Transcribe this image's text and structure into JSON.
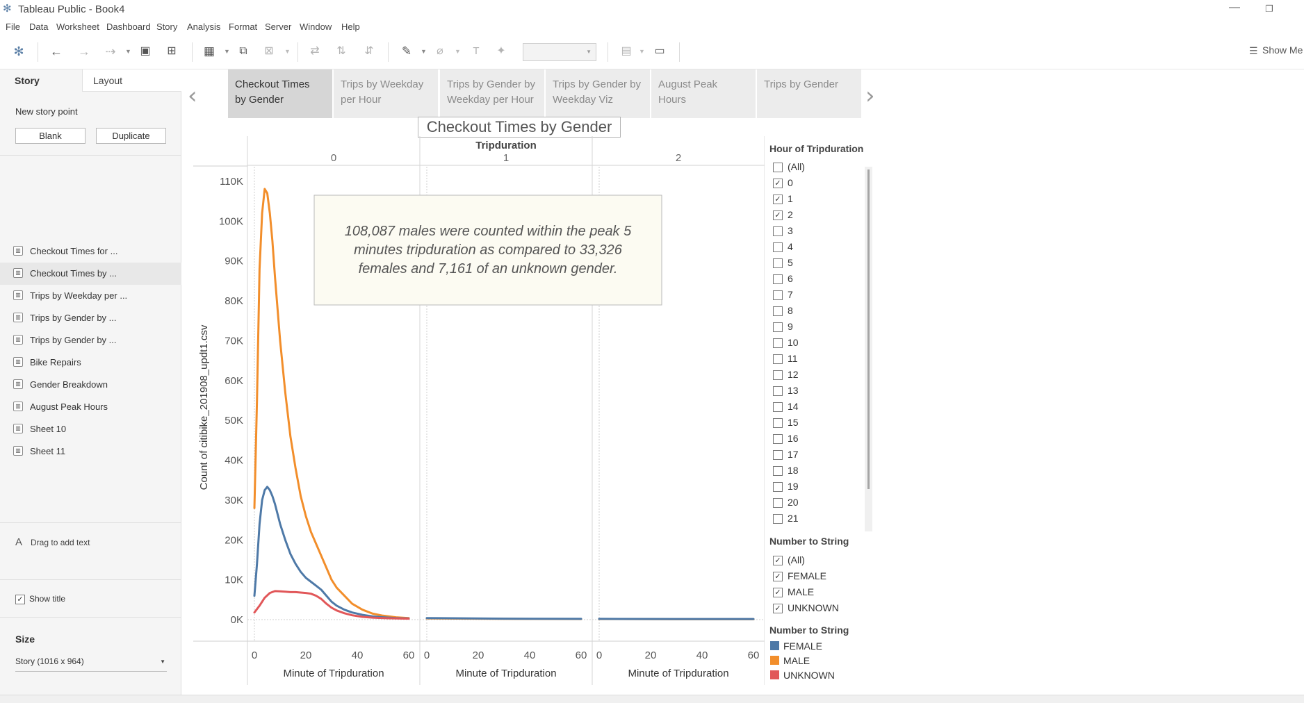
{
  "window": {
    "title": "Tableau Public - Book4",
    "minimize": "—",
    "restore": "❐"
  },
  "menu": [
    "File",
    "Data",
    "Worksheet",
    "Dashboard",
    "Story",
    "Analysis",
    "Format",
    "Server",
    "Window",
    "Help"
  ],
  "toolbar": {
    "show_me": "Show Me"
  },
  "left_panel": {
    "tab_story": "Story",
    "tab_layout": "Layout",
    "new_story_point": "New story point",
    "btn_blank": "Blank",
    "btn_duplicate": "Duplicate",
    "sheets": [
      "Checkout Times for ...",
      "Checkout Times by ...",
      "Trips by Weekday per ...",
      "Trips by Gender by ...",
      "Trips by Gender by ...",
      "Bike Repairs",
      "Gender Breakdown",
      "August Peak Hours",
      "Sheet 10",
      "Sheet 11"
    ],
    "selected_sheet_index": 1,
    "drag_text": "Drag to add text",
    "show_title": "Show title",
    "size_label": "Size",
    "size_value": "Story (1016 x 964)"
  },
  "story_points": [
    {
      "line1": "Checkout Times",
      "line2": "by Gender",
      "active": true
    },
    {
      "line1": "Trips by Weekday",
      "line2": "per Hour",
      "active": false
    },
    {
      "line1": "Trips by Gender by",
      "line2": "Weekday per Hour",
      "active": false
    },
    {
      "line1": "Trips by Gender by",
      "line2": "Weekday Viz",
      "active": false
    },
    {
      "line1": "August Peak",
      "line2": "Hours",
      "active": false
    },
    {
      "line1": "Trips by Gender",
      "line2": "",
      "active": false
    }
  ],
  "sheet": {
    "title": "Checkout Times by Gender",
    "annotation": {
      "line1": "108,087 males were counted within the  peak 5",
      "line2": "minutes tripduration as compared to 33,326",
      "line3": "females and 7,161 of an unknown gender."
    }
  },
  "filters": {
    "hour_title": "Hour of Tripduration",
    "hour_items": [
      {
        "label": "(All)",
        "checked": false
      },
      {
        "label": "0",
        "checked": true
      },
      {
        "label": "1",
        "checked": true
      },
      {
        "label": "2",
        "checked": true
      },
      {
        "label": "3",
        "checked": false
      },
      {
        "label": "4",
        "checked": false
      },
      {
        "label": "5",
        "checked": false
      },
      {
        "label": "6",
        "checked": false
      },
      {
        "label": "7",
        "checked": false
      },
      {
        "label": "8",
        "checked": false
      },
      {
        "label": "9",
        "checked": false
      },
      {
        "label": "10",
        "checked": false
      },
      {
        "label": "11",
        "checked": false
      },
      {
        "label": "12",
        "checked": false
      },
      {
        "label": "13",
        "checked": false
      },
      {
        "label": "14",
        "checked": false
      },
      {
        "label": "15",
        "checked": false
      },
      {
        "label": "16",
        "checked": false
      },
      {
        "label": "17",
        "checked": false
      },
      {
        "label": "18",
        "checked": false
      },
      {
        "label": "19",
        "checked": false
      },
      {
        "label": "20",
        "checked": false
      },
      {
        "label": "21",
        "checked": false
      }
    ],
    "gender_title": "Number to String",
    "gender_items": [
      {
        "label": "(All)",
        "checked": true
      },
      {
        "label": "FEMALE",
        "checked": true
      },
      {
        "label": "MALE",
        "checked": true
      },
      {
        "label": "UNKNOWN",
        "checked": true
      }
    ],
    "color_title": "Number to String",
    "color_items": [
      {
        "label": "FEMALE",
        "color": "#4e79a7"
      },
      {
        "label": "MALE",
        "color": "#f28e2b"
      },
      {
        "label": "UNKNOWN",
        "color": "#e15759"
      }
    ]
  },
  "chart_data": {
    "type": "line",
    "column_header": "Tripduration",
    "panels": [
      "0",
      "1",
      "2"
    ],
    "xlabel": "Minute of Tripduration",
    "ylabel": "Count of citibike_201908_updt1.csv",
    "xlim": [
      0,
      60
    ],
    "ylim": [
      0,
      110000
    ],
    "y_ticks": [
      "0K",
      "10K",
      "20K",
      "30K",
      "40K",
      "50K",
      "60K",
      "70K",
      "80K",
      "90K",
      "100K",
      "110K"
    ],
    "x_ticks": [
      "0",
      "20",
      "40",
      "60"
    ],
    "series": [
      {
        "name": "MALE",
        "color": "#f28e2b",
        "panels": [
          [
            [
              0,
              28000
            ],
            [
              1,
              55000
            ],
            [
              2,
              88000
            ],
            [
              3,
              102000
            ],
            [
              4,
              108087
            ],
            [
              5,
              107000
            ],
            [
              6,
              102000
            ],
            [
              7,
              95000
            ],
            [
              8,
              86000
            ],
            [
              10,
              70000
            ],
            [
              12,
              57000
            ],
            [
              14,
              46000
            ],
            [
              16,
              38000
            ],
            [
              18,
              31000
            ],
            [
              20,
              26000
            ],
            [
              22,
              22000
            ],
            [
              24,
              19000
            ],
            [
              26,
              16000
            ],
            [
              28,
              13000
            ],
            [
              30,
              10000
            ],
            [
              32,
              8000
            ],
            [
              35,
              6000
            ],
            [
              38,
              4000
            ],
            [
              42,
              2500
            ],
            [
              46,
              1500
            ],
            [
              50,
              1000
            ],
            [
              55,
              600
            ],
            [
              60,
              400
            ]
          ],
          [
            [
              0,
              300
            ],
            [
              30,
              200
            ],
            [
              60,
              150
            ]
          ],
          [
            [
              0,
              150
            ],
            [
              30,
              100
            ],
            [
              60,
              100
            ]
          ]
        ]
      },
      {
        "name": "FEMALE",
        "color": "#4e79a7",
        "panels": [
          [
            [
              0,
              6000
            ],
            [
              1,
              14000
            ],
            [
              2,
              24000
            ],
            [
              3,
              30000
            ],
            [
              4,
              32500
            ],
            [
              5,
              33326
            ],
            [
              6,
              32500
            ],
            [
              7,
              31000
            ],
            [
              8,
              29000
            ],
            [
              10,
              24000
            ],
            [
              12,
              20000
            ],
            [
              14,
              16500
            ],
            [
              16,
              14000
            ],
            [
              18,
              12000
            ],
            [
              20,
              10500
            ],
            [
              22,
              9500
            ],
            [
              24,
              8500
            ],
            [
              26,
              7500
            ],
            [
              28,
              6000
            ],
            [
              30,
              4500
            ],
            [
              32,
              3500
            ],
            [
              35,
              2500
            ],
            [
              38,
              1800
            ],
            [
              42,
              1200
            ],
            [
              46,
              800
            ],
            [
              50,
              600
            ],
            [
              55,
              400
            ],
            [
              60,
              300
            ]
          ],
          [
            [
              0,
              400
            ],
            [
              30,
              250
            ],
            [
              60,
              200
            ]
          ],
          [
            [
              0,
              200
            ],
            [
              30,
              150
            ],
            [
              60,
              150
            ]
          ]
        ]
      },
      {
        "name": "UNKNOWN",
        "color": "#e15759",
        "panels": [
          [
            [
              0,
              1800
            ],
            [
              2,
              3500
            ],
            [
              4,
              5500
            ],
            [
              6,
              6700
            ],
            [
              8,
              7161
            ],
            [
              10,
              7100
            ],
            [
              12,
              7000
            ],
            [
              14,
              6900
            ],
            [
              16,
              6900
            ],
            [
              18,
              6800
            ],
            [
              20,
              6700
            ],
            [
              22,
              6500
            ],
            [
              24,
              6000
            ],
            [
              26,
              5200
            ],
            [
              28,
              4000
            ],
            [
              30,
              3000
            ],
            [
              32,
              2300
            ],
            [
              35,
              1600
            ],
            [
              38,
              1100
            ],
            [
              42,
              700
            ],
            [
              46,
              500
            ],
            [
              50,
              400
            ],
            [
              55,
              300
            ],
            [
              60,
              250
            ]
          ],
          [],
          []
        ]
      }
    ]
  }
}
